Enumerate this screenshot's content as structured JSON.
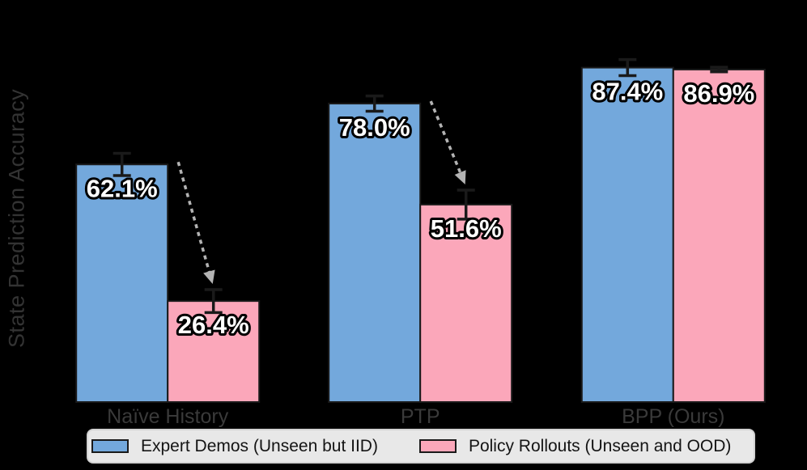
{
  "background_color": "#000000",
  "chart_data": {
    "type": "bar",
    "title": "",
    "ylabel": "State Prediction Accuracy",
    "xlabel": "",
    "ylim": [
      0,
      100
    ],
    "unit": "%",
    "grid": false,
    "legend_position": "bottom",
    "categories": [
      "Naïve History",
      "PTP",
      "BPP (Ours)"
    ],
    "series": [
      {
        "name": "Expert Demos (Unseen but IID)",
        "color": "#73a8dc",
        "values": [
          62.1,
          78.0,
          87.4
        ],
        "errors": [
          2.9,
          2.0,
          2.1
        ],
        "bar_labels": [
          "62.1%",
          "78.0%",
          "87.4%"
        ]
      },
      {
        "name": "Policy Rollouts (Unseen and OOD)",
        "color": "#fba7ba",
        "values": [
          26.4,
          51.6,
          86.9
        ],
        "errors": [
          3.0,
          3.8,
          0.6
        ],
        "bar_labels": [
          "26.4%",
          "51.6%",
          "86.9%"
        ]
      }
    ],
    "annotations": [
      {
        "type": "drop-arrow",
        "category": "Naïve History",
        "from_series": "Expert Demos (Unseen but IID)",
        "to_series": "Policy Rollouts (Unseen and OOD)"
      },
      {
        "type": "drop-arrow",
        "category": "PTP",
        "from_series": "Expert Demos (Unseen but IID)",
        "to_series": "Policy Rollouts (Unseen and OOD)"
      }
    ],
    "colors": {
      "bar_border": "#1a1a1a",
      "error_bar": "#1a1a1a",
      "arrow": "#b3b3b3",
      "axis_text": "#3a3a3a",
      "bar_label_fill": "#ffffff",
      "bar_label_outline": "#000000",
      "legend_bg": "#e8e8e8",
      "legend_border": "#d2d2d2"
    }
  }
}
